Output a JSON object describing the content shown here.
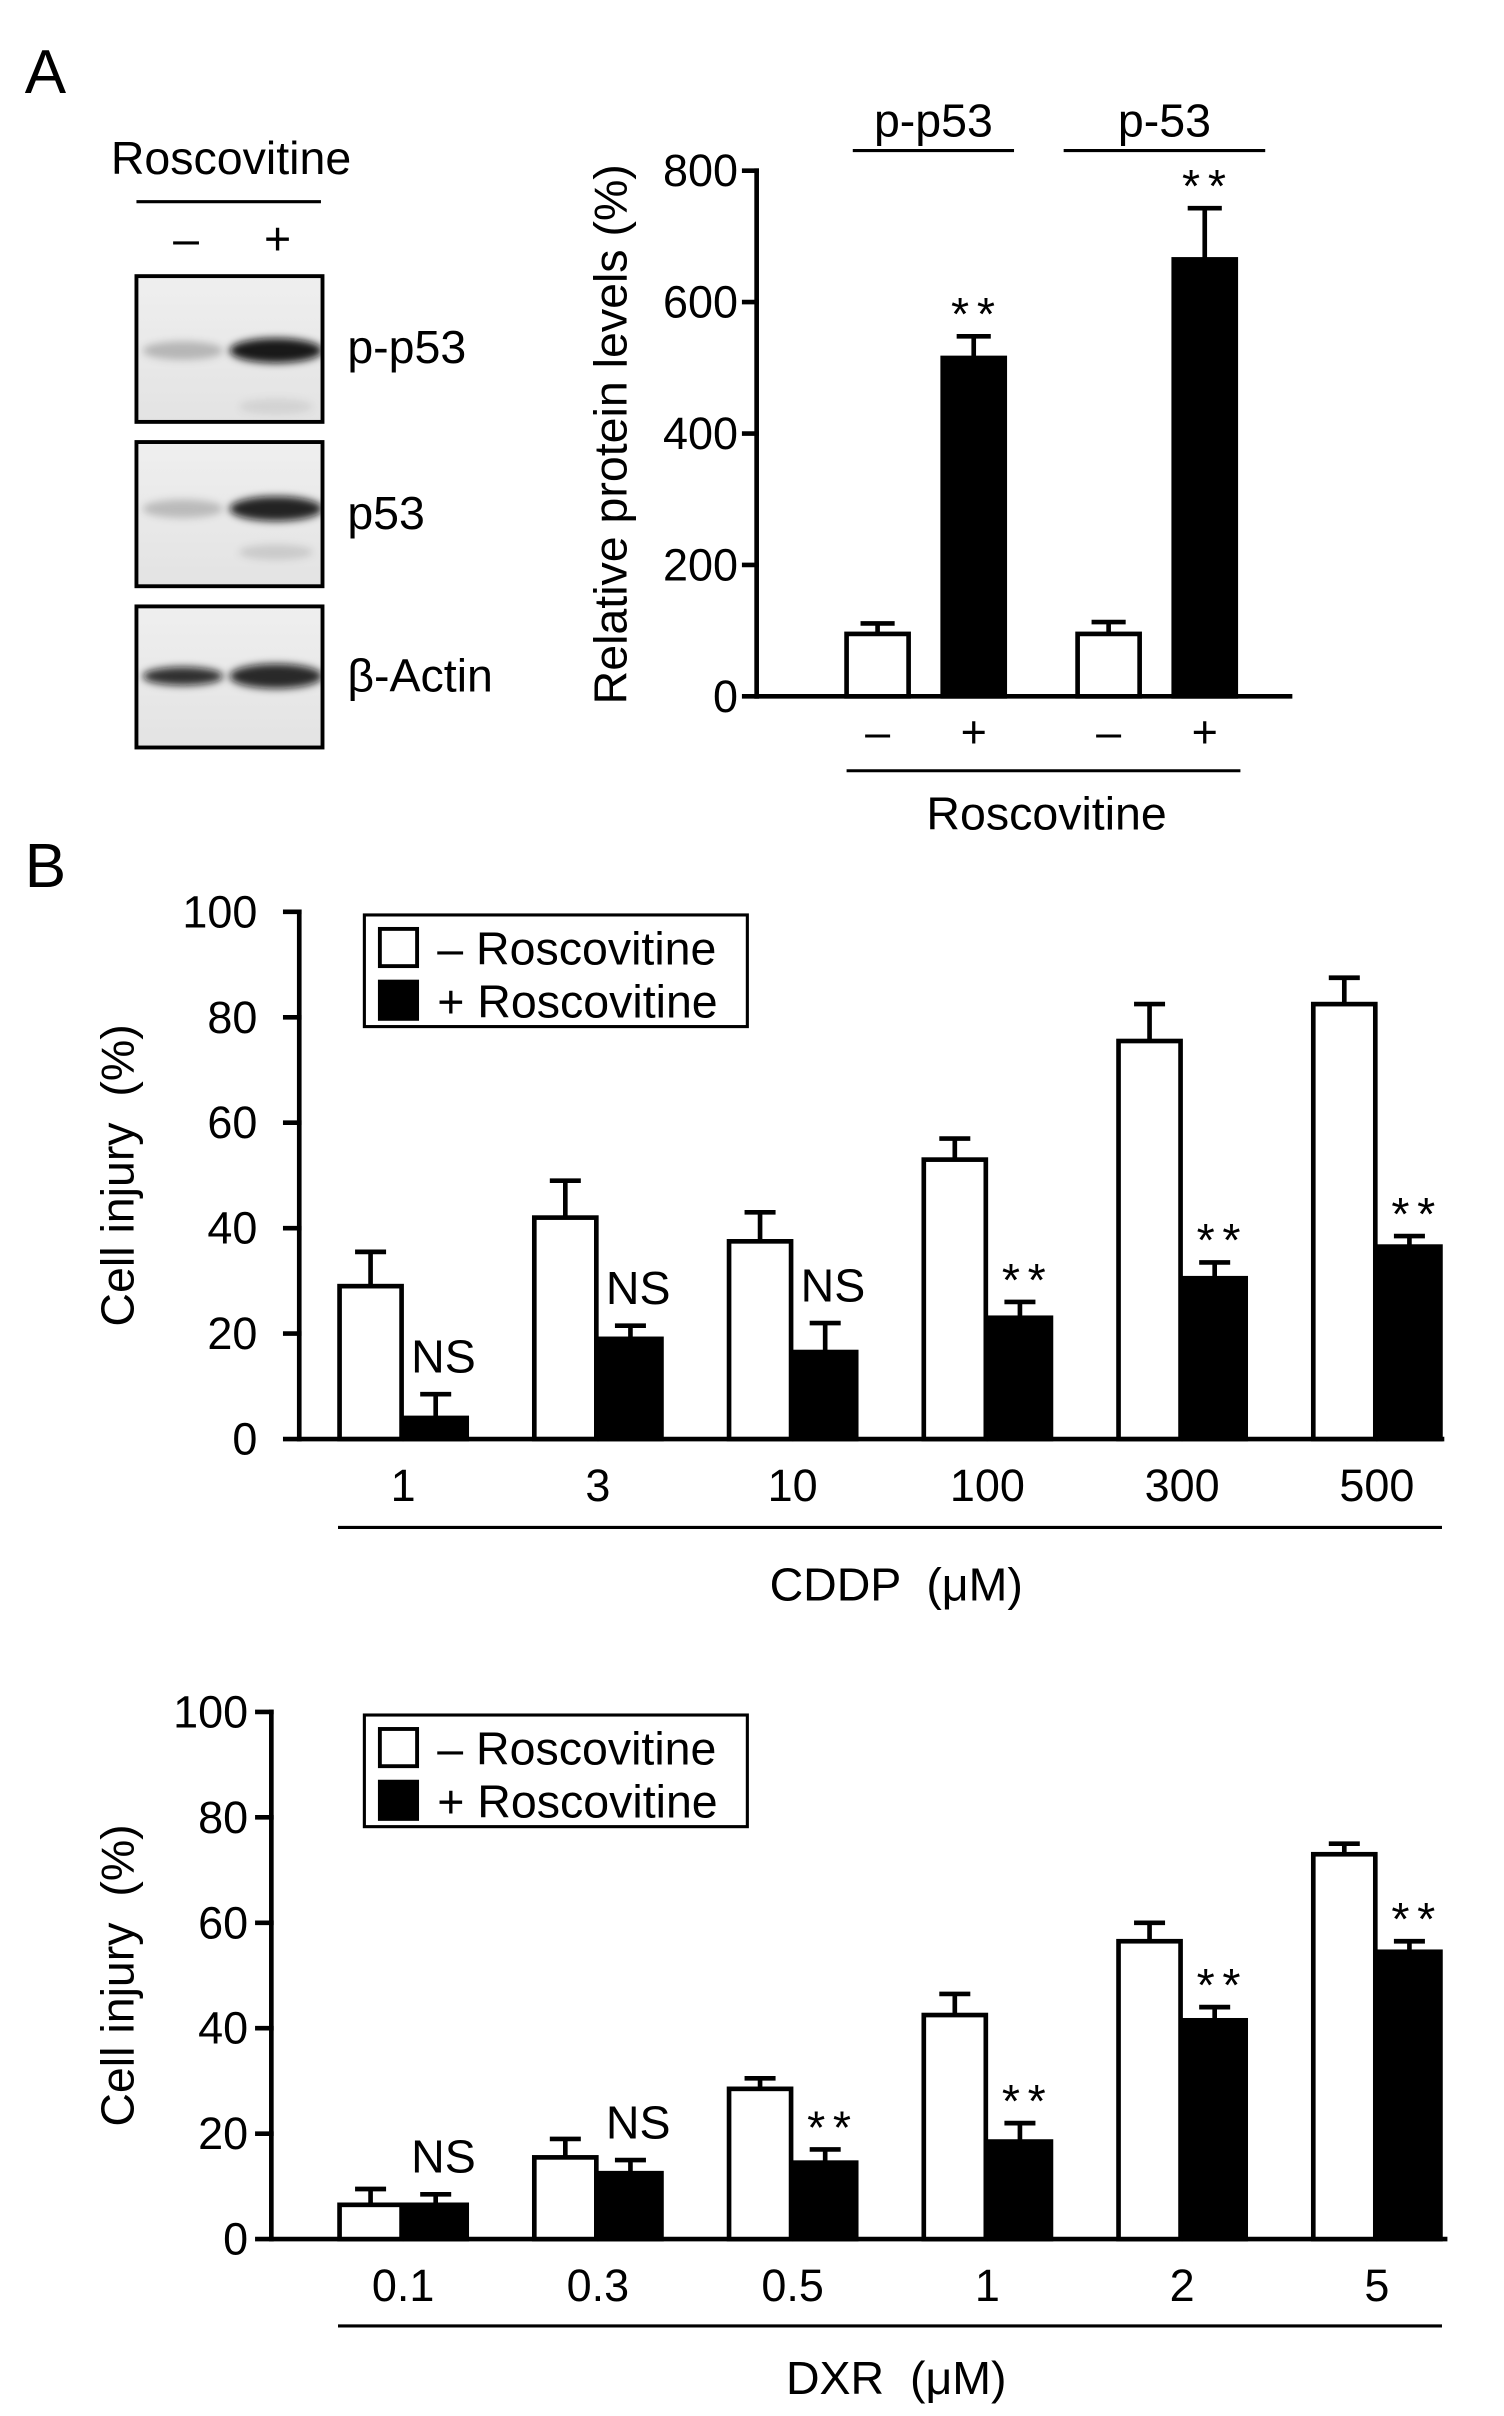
{
  "figure": {
    "panel_a_label": "A",
    "panel_b_label": "B"
  },
  "blot": {
    "treatment_label": "Roscovitine",
    "lanes": [
      "–",
      "+"
    ],
    "rows": [
      {
        "label": "p-p53",
        "band_intensity": [
          0.22,
          0.95
        ],
        "faint_band_intensity": [
          0.0,
          0.08
        ]
      },
      {
        "label": "p53",
        "band_intensity": [
          0.2,
          0.9
        ],
        "faint_band_intensity": [
          0.0,
          0.12
        ]
      },
      {
        "label": "β-Actin",
        "band_intensity": [
          0.85,
          0.88
        ],
        "faint_band_intensity": [
          0.0,
          0.0
        ]
      }
    ]
  },
  "chart_data": [
    {
      "type": "bar",
      "ylabel": "Relative protein levels (%)",
      "xlabel": "Roscovitine",
      "ylim": [
        0,
        800
      ],
      "yticks": [
        0,
        200,
        400,
        600,
        800
      ],
      "group_labels": [
        "p-p53",
        "p-53"
      ],
      "bars": [
        {
          "group": 0,
          "label": "–",
          "value": 95,
          "error": 16,
          "color": "#ffffff"
        },
        {
          "group": 0,
          "label": "+",
          "value": 515,
          "error": 33,
          "color": "#000000",
          "annotation": "**"
        },
        {
          "group": 1,
          "label": "–",
          "value": 95,
          "error": 18,
          "color": "#ffffff"
        },
        {
          "group": 1,
          "label": "+",
          "value": 665,
          "error": 78,
          "color": "#000000",
          "annotation": "**"
        }
      ]
    },
    {
      "type": "bar",
      "ylabel": "Cell injury  (%)",
      "xlabel": "CDDP  (μM)",
      "ylim": [
        0,
        100
      ],
      "yticks": [
        0,
        20,
        40,
        60,
        80,
        100
      ],
      "categories": [
        "1",
        "3",
        "10",
        "100",
        "300",
        "500"
      ],
      "series": [
        {
          "name": "– Roscovitine",
          "color": "#ffffff",
          "values": [
            29,
            42,
            37.5,
            53,
            75.5,
            82.5
          ],
          "errors": [
            6.5,
            7,
            5.5,
            4,
            7,
            5
          ]
        },
        {
          "name": "+ Roscovitine",
          "color": "#000000",
          "values": [
            4,
            19,
            16.5,
            23,
            30.5,
            36.5
          ],
          "errors": [
            4.5,
            2.5,
            5.5,
            3,
            3,
            2
          ]
        }
      ],
      "annotations": [
        "NS",
        "NS",
        "NS",
        "**",
        "**",
        "**"
      ],
      "legend": "top-left"
    },
    {
      "type": "bar",
      "ylabel": "Cell injury  (%)",
      "xlabel": "DXR  (μM)",
      "ylim": [
        0,
        100
      ],
      "yticks": [
        0,
        20,
        40,
        60,
        80,
        100
      ],
      "categories": [
        "0.1",
        "0.3",
        "0.5",
        "1",
        "2",
        "5"
      ],
      "series": [
        {
          "name": "– Roscovitine",
          "color": "#ffffff",
          "values": [
            6.5,
            15.5,
            28.5,
            42.5,
            56.5,
            73
          ],
          "errors": [
            3,
            3.5,
            2,
            4,
            3.5,
            2
          ]
        },
        {
          "name": "+ Roscovitine",
          "color": "#000000",
          "values": [
            6.5,
            12.5,
            14.5,
            18.5,
            41.5,
            54.5
          ],
          "errors": [
            2,
            2.5,
            2.5,
            3.5,
            2.5,
            2
          ]
        }
      ],
      "annotations": [
        "NS",
        "NS",
        "**",
        "**",
        "**",
        "**"
      ],
      "legend": "top-left"
    }
  ]
}
